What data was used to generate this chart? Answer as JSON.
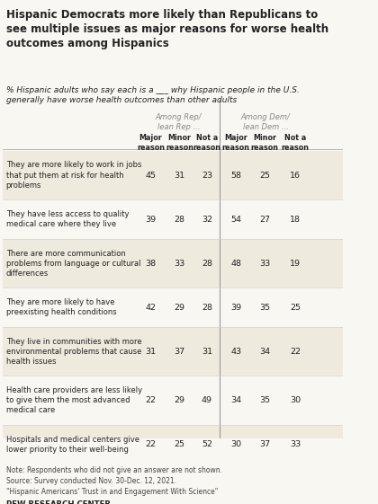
{
  "title": "Hispanic Democrats more likely than Republicans to\nsee multiple issues as major reasons for worse health\noutcomes among Hispanics",
  "subtitle": "% Hispanic adults who say each is a ___ why Hispanic people in the U.S.\ngenerally have worse health outcomes than other adults",
  "group1_header": "Among Rep/\nlean Rep ...",
  "group2_header": "Among Dem/\nlean Dem ...",
  "col_headers": [
    "Major\nreason",
    "Minor\nreason",
    "Not a\nreason"
  ],
  "rows": [
    {
      "label": "They are more likely to work in jobs\nthat put them at risk for health\nproblems",
      "rep": [
        45,
        31,
        23
      ],
      "dem": [
        58,
        25,
        16
      ]
    },
    {
      "label": "They have less access to quality\nmedical care where they live",
      "rep": [
        39,
        28,
        32
      ],
      "dem": [
        54,
        27,
        18
      ]
    },
    {
      "label": "There are more communication\nproblems from language or cultural\ndifferences",
      "rep": [
        38,
        33,
        28
      ],
      "dem": [
        48,
        33,
        19
      ]
    },
    {
      "label": "They are more likely to have\npreexisting health conditions",
      "rep": [
        42,
        29,
        28
      ],
      "dem": [
        39,
        35,
        25
      ]
    },
    {
      "label": "They live in communities with more\nenvironmental problems that cause\nhealth issues",
      "rep": [
        31,
        37,
        31
      ],
      "dem": [
        43,
        34,
        22
      ]
    },
    {
      "label": "Health care providers are less likely\nto give them the most advanced\nmedical care",
      "rep": [
        22,
        29,
        49
      ],
      "dem": [
        34,
        35,
        30
      ]
    },
    {
      "label": "Hospitals and medical centers give\nlower priority to their well-being",
      "rep": [
        22,
        25,
        52
      ],
      "dem": [
        30,
        37,
        33
      ]
    }
  ],
  "note": "Note: Respondents who did not give an answer are not shown.\nSource: Survey conducted Nov. 30-Dec. 12, 2021.\n\"Hispanic Americans' Trust in and Engagement With Science\"",
  "footer": "PEW RESEARCH CENTER",
  "bg_color": "#f9f7f2",
  "header_gray": "#888888",
  "divider_color": "#999999",
  "text_color": "#222222",
  "alt_row_color": "#eeeade"
}
